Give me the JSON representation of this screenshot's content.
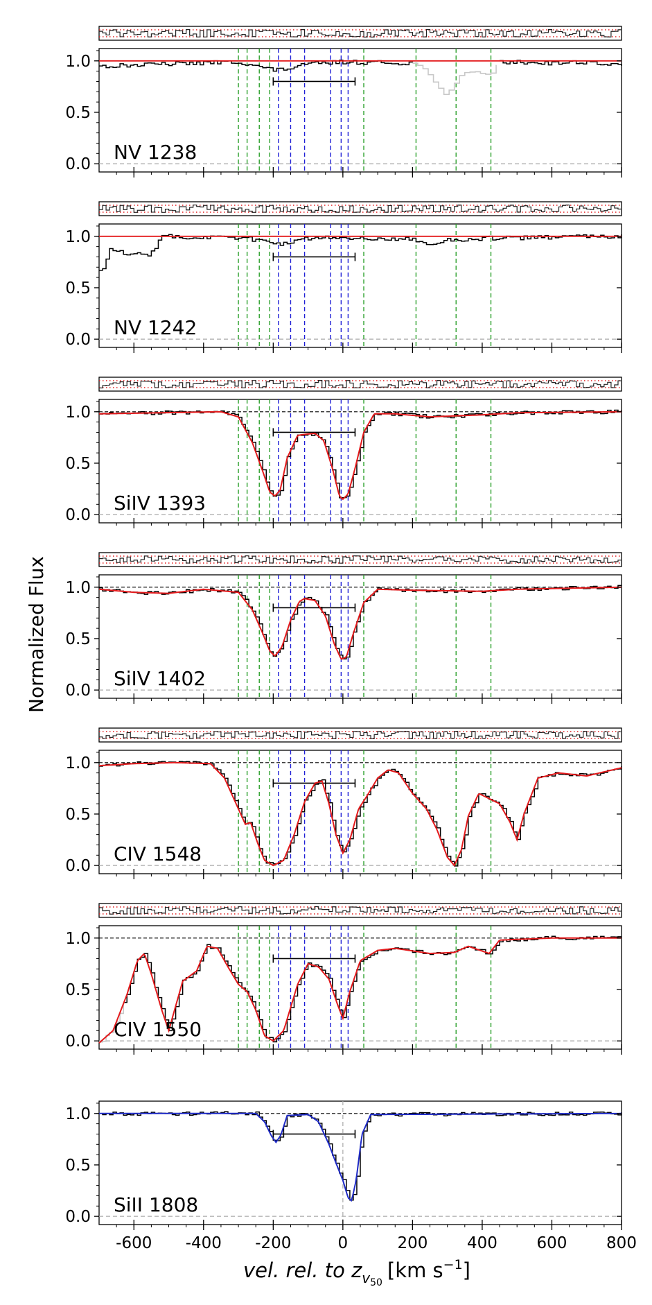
{
  "figure": {
    "ylabel": "Normalized Flux",
    "xlabel_main": "vel. rel. to z",
    "xlabel_sub": "v",
    "xlabel_subsub": "50",
    "xlabel_units": "[km s",
    "xlabel_exp": "−1",
    "xlabel_close": "]"
  },
  "chart_data": {
    "type": "line",
    "x_axis": {
      "range": [
        -700,
        800
      ],
      "ticks": [
        -600,
        -400,
        -200,
        0,
        200,
        400,
        600,
        800
      ],
      "tick_labels": [
        "-600",
        "-400",
        "-200",
        "0",
        "200",
        "400",
        "600",
        "800"
      ]
    },
    "y_axis": {
      "range": [
        -0.08,
        1.12
      ],
      "ticks": [
        0.0,
        0.5,
        1.0
      ],
      "tick_labels": [
        "0.0",
        "0.5",
        "1.0"
      ]
    },
    "velocity_bar": [
      -200,
      35
    ],
    "components_green": [
      -300,
      -275,
      -240,
      -210,
      60,
      210,
      325,
      425
    ],
    "components_blue": [
      -185,
      -150,
      -110,
      -35,
      -5,
      15
    ],
    "panels": [
      {
        "label": "NV 1238",
        "fit": "none",
        "fit_color": "#e41a1c",
        "has_residual": true,
        "gray_region": [
          200,
          450
        ],
        "anchors": [
          [
            -700,
            0.95
          ],
          [
            -500,
            0.97
          ],
          [
            -300,
            0.99
          ],
          [
            -200,
            0.91
          ],
          [
            -150,
            0.93
          ],
          [
            -100,
            0.97
          ],
          [
            0,
            0.99
          ],
          [
            150,
            0.98
          ],
          [
            200,
            0.98
          ]
        ],
        "gray_anchors": [
          [
            200,
            0.98
          ],
          [
            240,
            0.9
          ],
          [
            270,
            0.75
          ],
          [
            290,
            0.67
          ],
          [
            310,
            0.72
          ],
          [
            340,
            0.88
          ],
          [
            380,
            0.9
          ],
          [
            420,
            0.86
          ],
          [
            450,
            1.0
          ]
        ],
        "post_anchors": [
          [
            450,
            0.99
          ],
          [
            600,
            0.98
          ],
          [
            700,
            0.99
          ],
          [
            800,
            0.95
          ]
        ]
      },
      {
        "label": "NV 1242",
        "fit": "none",
        "fit_color": "#e41a1c",
        "has_residual": true,
        "anchors": [
          [
            -700,
            0.65
          ],
          [
            -690,
            0.7
          ],
          [
            -670,
            0.88
          ],
          [
            -620,
            0.83
          ],
          [
            -560,
            0.82
          ],
          [
            -540,
            0.9
          ],
          [
            -520,
            1.0
          ],
          [
            -450,
            0.99
          ],
          [
            -300,
            0.99
          ],
          [
            -180,
            0.93
          ],
          [
            -100,
            0.98
          ],
          [
            0,
            0.99
          ],
          [
            200,
            0.97
          ],
          [
            250,
            0.93
          ],
          [
            300,
            0.96
          ],
          [
            400,
            0.98
          ],
          [
            600,
            0.99
          ],
          [
            800,
            1.0
          ]
        ]
      },
      {
        "label": "SiIV 1393",
        "fit": "model",
        "fit_color": "#e41a1c",
        "has_residual": true,
        "anchors": [
          [
            -700,
            0.98
          ],
          [
            -350,
            1.0
          ],
          [
            -300,
            0.95
          ],
          [
            -260,
            0.7
          ],
          [
            -230,
            0.42
          ],
          [
            -210,
            0.22
          ],
          [
            -195,
            0.18
          ],
          [
            -180,
            0.24
          ],
          [
            -160,
            0.55
          ],
          [
            -130,
            0.77
          ],
          [
            -110,
            0.78
          ],
          [
            -80,
            0.79
          ],
          [
            -55,
            0.72
          ],
          [
            -30,
            0.45
          ],
          [
            -10,
            0.18
          ],
          [
            0,
            0.15
          ],
          [
            15,
            0.2
          ],
          [
            35,
            0.45
          ],
          [
            60,
            0.8
          ],
          [
            90,
            0.98
          ],
          [
            150,
            0.98
          ],
          [
            250,
            0.95
          ],
          [
            400,
            0.97
          ],
          [
            500,
            0.99
          ],
          [
            800,
            1.0
          ]
        ]
      },
      {
        "label": "SiIV 1402",
        "fit": "model",
        "fit_color": "#e41a1c",
        "has_residual": true,
        "anchors": [
          [
            -700,
            0.98
          ],
          [
            -600,
            0.95
          ],
          [
            -500,
            0.94
          ],
          [
            -400,
            0.98
          ],
          [
            -300,
            0.95
          ],
          [
            -260,
            0.78
          ],
          [
            -230,
            0.55
          ],
          [
            -210,
            0.38
          ],
          [
            -195,
            0.33
          ],
          [
            -175,
            0.42
          ],
          [
            -150,
            0.68
          ],
          [
            -125,
            0.86
          ],
          [
            -110,
            0.89
          ],
          [
            -80,
            0.87
          ],
          [
            -50,
            0.72
          ],
          [
            -25,
            0.45
          ],
          [
            -5,
            0.3
          ],
          [
            10,
            0.32
          ],
          [
            30,
            0.55
          ],
          [
            60,
            0.85
          ],
          [
            100,
            0.98
          ],
          [
            200,
            0.97
          ],
          [
            400,
            0.96
          ],
          [
            500,
            0.98
          ],
          [
            800,
            1.0
          ]
        ]
      },
      {
        "label": "CIV 1548",
        "fit": "model",
        "fit_color": "#e41a1c",
        "has_residual": true,
        "anchors": [
          [
            -700,
            0.97
          ],
          [
            -600,
            0.99
          ],
          [
            -480,
            1.0
          ],
          [
            -380,
            0.99
          ],
          [
            -340,
            0.85
          ],
          [
            -300,
            0.55
          ],
          [
            -280,
            0.4
          ],
          [
            -265,
            0.42
          ],
          [
            -245,
            0.22
          ],
          [
            -225,
            0.05
          ],
          [
            -200,
            0.0
          ],
          [
            -170,
            0.05
          ],
          [
            -140,
            0.3
          ],
          [
            -110,
            0.62
          ],
          [
            -80,
            0.8
          ],
          [
            -60,
            0.82
          ],
          [
            -40,
            0.6
          ],
          [
            -20,
            0.3
          ],
          [
            0,
            0.12
          ],
          [
            20,
            0.25
          ],
          [
            45,
            0.55
          ],
          [
            70,
            0.68
          ],
          [
            100,
            0.85
          ],
          [
            130,
            0.93
          ],
          [
            160,
            0.9
          ],
          [
            200,
            0.7
          ],
          [
            240,
            0.55
          ],
          [
            270,
            0.35
          ],
          [
            300,
            0.08
          ],
          [
            320,
            0.0
          ],
          [
            340,
            0.15
          ],
          [
            360,
            0.48
          ],
          [
            390,
            0.7
          ],
          [
            420,
            0.65
          ],
          [
            450,
            0.6
          ],
          [
            480,
            0.42
          ],
          [
            500,
            0.25
          ],
          [
            520,
            0.5
          ],
          [
            560,
            0.85
          ],
          [
            620,
            0.9
          ],
          [
            700,
            0.87
          ],
          [
            800,
            0.95
          ]
        ]
      },
      {
        "label": "CIV 1550",
        "fit": "model",
        "fit_color": "#e41a1c",
        "has_residual": true,
        "gray_region": [
          -700,
          -630
        ],
        "anchors": [
          [
            -700,
            -0.02
          ],
          [
            -660,
            0.1
          ],
          [
            -620,
            0.45
          ],
          [
            -590,
            0.78
          ],
          [
            -570,
            0.85
          ],
          [
            -550,
            0.65
          ],
          [
            -520,
            0.3
          ],
          [
            -500,
            0.1
          ],
          [
            -485,
            0.28
          ],
          [
            -460,
            0.58
          ],
          [
            -420,
            0.68
          ],
          [
            -390,
            0.92
          ],
          [
            -360,
            0.9
          ],
          [
            -330,
            0.72
          ],
          [
            -300,
            0.55
          ],
          [
            -275,
            0.48
          ],
          [
            -250,
            0.3
          ],
          [
            -225,
            0.05
          ],
          [
            -200,
            0.0
          ],
          [
            -170,
            0.1
          ],
          [
            -130,
            0.55
          ],
          [
            -100,
            0.75
          ],
          [
            -70,
            0.72
          ],
          [
            -40,
            0.6
          ],
          [
            -15,
            0.35
          ],
          [
            0,
            0.22
          ],
          [
            20,
            0.48
          ],
          [
            50,
            0.78
          ],
          [
            100,
            0.88
          ],
          [
            150,
            0.9
          ],
          [
            250,
            0.85
          ],
          [
            320,
            0.86
          ],
          [
            360,
            0.92
          ],
          [
            420,
            0.85
          ],
          [
            450,
            0.98
          ],
          [
            600,
            1.0
          ],
          [
            800,
            1.0
          ]
        ]
      },
      {
        "label": "SiII 1808",
        "fit": "model",
        "fit_color": "#1f2bc7",
        "has_residual": false,
        "anchors": [
          [
            -700,
            1.0
          ],
          [
            -250,
            1.0
          ],
          [
            -225,
            0.92
          ],
          [
            -205,
            0.78
          ],
          [
            -192,
            0.72
          ],
          [
            -178,
            0.79
          ],
          [
            -160,
            0.98
          ],
          [
            -100,
            0.99
          ],
          [
            -70,
            0.92
          ],
          [
            -40,
            0.7
          ],
          [
            -20,
            0.52
          ],
          [
            0,
            0.35
          ],
          [
            15,
            0.18
          ],
          [
            25,
            0.15
          ],
          [
            38,
            0.35
          ],
          [
            55,
            0.8
          ],
          [
            80,
            0.99
          ],
          [
            800,
            1.0
          ]
        ]
      }
    ]
  },
  "colors": {
    "data": "#000000",
    "error": "#777777",
    "green": "#2ca02c",
    "blue": "#1f1fd6",
    "residual_limits": "#e41a1c",
    "zero": "#aaaaaa",
    "gray_data": "#c8c8c8"
  }
}
